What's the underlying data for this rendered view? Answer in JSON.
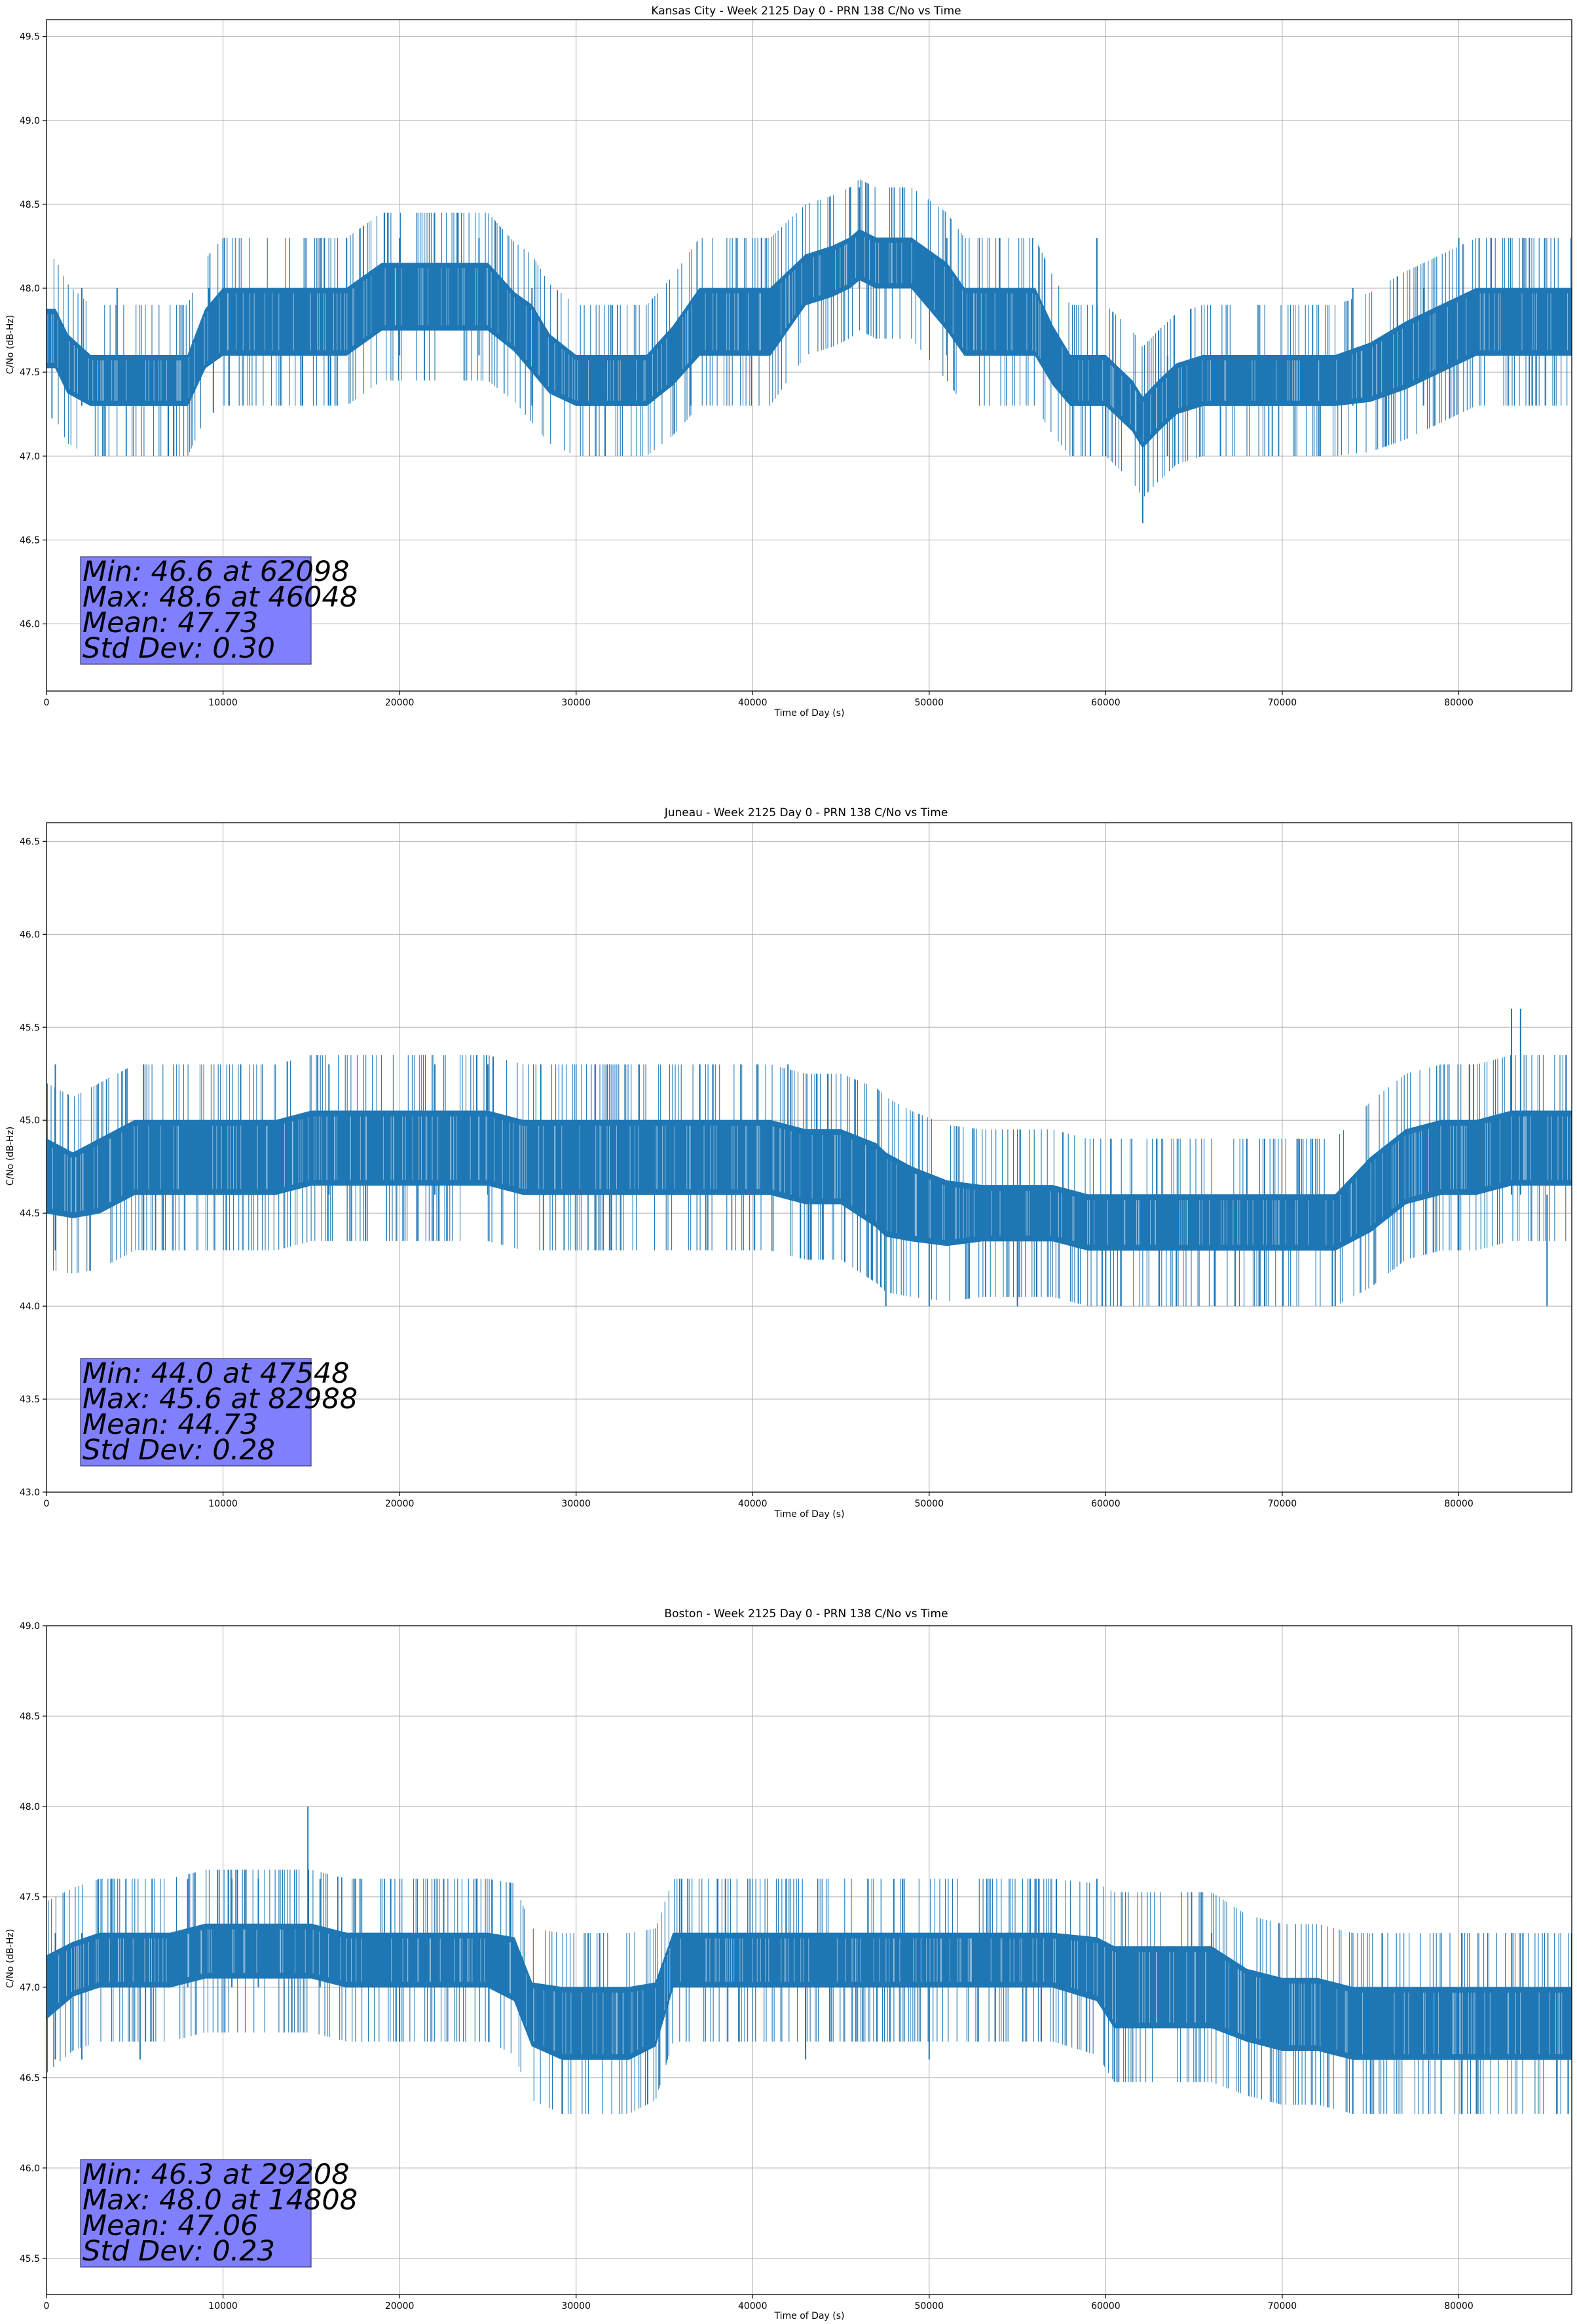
{
  "colors": {
    "line": "#1f77b4",
    "grid": "#b0b0b0",
    "stats_box_fill": "#8080ff",
    "stats_box_edge": "#3a3a6e",
    "axes": "#000000"
  },
  "chart_data": [
    {
      "type": "line",
      "title": "Kansas City - Week 2125 Day 0 - PRN 138 C/No vs Time",
      "xlabel": "Time of Day (s)",
      "ylabel": "C/No (dB-Hz)",
      "xlim": [
        0,
        86400
      ],
      "ylim": [
        45.6,
        49.6
      ],
      "xticks": [
        0,
        10000,
        20000,
        30000,
        40000,
        50000,
        60000,
        70000,
        80000
      ],
      "yticks": [
        46.0,
        46.5,
        47.0,
        47.5,
        48.0,
        48.5,
        49.0,
        49.5
      ],
      "grid": true,
      "stats_lines": [
        "Min: 46.6 at 62098",
        "Max: 48.6 at 46048",
        "Mean: 47.73",
        "Std Dev: 0.30"
      ],
      "series": [
        {
          "x": [
            0,
            500,
            1200,
            2500,
            4000,
            6000,
            8000,
            9000,
            10000,
            12000,
            14000,
            15500,
            17000,
            19000,
            21000,
            23000,
            25000,
            26500,
            27500,
            28500,
            30000,
            32000,
            34000,
            35500,
            37000,
            39000,
            41000,
            43000,
            44500,
            45500,
            46048,
            47000,
            49000,
            51000,
            52000,
            54000,
            56000,
            57000,
            58000,
            60000,
            61500,
            62098,
            63000,
            64000,
            65500,
            67000,
            69000,
            71000,
            73000,
            75000,
            77000,
            79000,
            81000,
            83000,
            85000,
            86400
          ],
          "y_mid": [
            47.7,
            47.7,
            47.55,
            47.45,
            47.45,
            47.45,
            47.45,
            47.7,
            47.8,
            47.8,
            47.8,
            47.8,
            47.8,
            47.95,
            47.95,
            47.95,
            47.95,
            47.8,
            47.7,
            47.55,
            47.45,
            47.45,
            47.45,
            47.6,
            47.8,
            47.8,
            47.8,
            48.05,
            48.1,
            48.15,
            48.2,
            48.15,
            48.15,
            47.95,
            47.8,
            47.8,
            47.8,
            47.6,
            47.45,
            47.45,
            47.3,
            47.2,
            47.3,
            47.4,
            47.45,
            47.45,
            47.45,
            47.45,
            47.45,
            47.5,
            47.6,
            47.7,
            47.8,
            47.8,
            47.8,
            47.8
          ],
          "band": [
            0.35,
            0.35,
            0.35,
            0.3,
            0.3,
            0.3,
            0.3,
            0.35,
            0.4,
            0.4,
            0.4,
            0.4,
            0.4,
            0.4,
            0.4,
            0.4,
            0.4,
            0.35,
            0.4,
            0.35,
            0.3,
            0.3,
            0.3,
            0.35,
            0.4,
            0.4,
            0.4,
            0.3,
            0.3,
            0.3,
            0.3,
            0.3,
            0.3,
            0.4,
            0.4,
            0.4,
            0.4,
            0.35,
            0.3,
            0.3,
            0.3,
            0.3,
            0.3,
            0.3,
            0.3,
            0.3,
            0.3,
            0.3,
            0.3,
            0.35,
            0.4,
            0.4,
            0.4,
            0.4,
            0.4,
            0.4
          ],
          "spikes": [
            [
              2000,
              47.3,
              48.0
            ],
            [
              4000,
              47.3,
              48.0
            ],
            [
              9200,
              47.6,
              48.0
            ],
            [
              14500,
              47.3,
              47.6
            ],
            [
              17000,
              47.6,
              48.3
            ],
            [
              20000,
              47.6,
              48.3
            ],
            [
              24500,
              47.6,
              48.3
            ],
            [
              27500,
              47.3,
              48.0
            ],
            [
              36500,
              47.3,
              47.6
            ],
            [
              40500,
              47.6,
              48.3
            ],
            [
              45500,
              48.0,
              48.6
            ],
            [
              46048,
              48.0,
              48.6
            ],
            [
              48500,
              48.0,
              48.6
            ],
            [
              51000,
              47.6,
              48.3
            ],
            [
              54000,
              47.6,
              48.3
            ],
            [
              59500,
              47.6,
              48.3
            ],
            [
              60000,
              47.0,
              47.6
            ],
            [
              62098,
              46.6,
              47.3
            ],
            [
              63500,
              47.0,
              47.6
            ],
            [
              66500,
              47.0,
              47.6
            ],
            [
              74000,
              47.3,
              48.0
            ],
            [
              78000,
              47.3,
              48.0
            ],
            [
              80000,
              47.6,
              48.3
            ],
            [
              84000,
              47.6,
              48.3
            ]
          ]
        }
      ]
    },
    {
      "type": "line",
      "title": "Juneau - Week 2125 Day 0 - PRN 138 C/No vs Time",
      "xlabel": "Time of Day (s)",
      "ylabel": "C/No (dB-Hz)",
      "xlim": [
        0,
        86400
      ],
      "ylim": [
        43.0,
        46.6
      ],
      "xticks": [
        0,
        10000,
        20000,
        30000,
        40000,
        50000,
        60000,
        70000,
        80000
      ],
      "yticks": [
        43.0,
        43.5,
        44.0,
        44.5,
        45.0,
        45.5,
        46.0,
        46.5
      ],
      "grid": true,
      "stats_lines": [
        "Min: 44.0 at 47548",
        "Max: 45.6 at 82988",
        "Mean: 44.73",
        "Std Dev: 0.28"
      ],
      "series": [
        {
          "x": [
            0,
            1500,
            3000,
            5000,
            7000,
            9000,
            11000,
            13000,
            15000,
            17000,
            19000,
            21000,
            23000,
            25000,
            27000,
            29000,
            31000,
            33000,
            35000,
            37000,
            39000,
            41000,
            43000,
            45000,
            47000,
            47548,
            49000,
            51000,
            53000,
            55000,
            57000,
            59000,
            61000,
            63000,
            65000,
            67000,
            69000,
            71000,
            73000,
            75000,
            77000,
            79000,
            81000,
            82988,
            84000,
            86400
          ],
          "y_mid": [
            44.7,
            44.65,
            44.7,
            44.8,
            44.8,
            44.8,
            44.8,
            44.8,
            44.85,
            44.85,
            44.85,
            44.85,
            44.85,
            44.85,
            44.8,
            44.8,
            44.8,
            44.8,
            44.8,
            44.8,
            44.8,
            44.8,
            44.75,
            44.75,
            44.65,
            44.6,
            44.55,
            44.5,
            44.5,
            44.5,
            44.5,
            44.45,
            44.45,
            44.45,
            44.45,
            44.45,
            44.45,
            44.45,
            44.45,
            44.6,
            44.75,
            44.8,
            44.8,
            44.85,
            44.85,
            44.85
          ],
          "band": [
            0.4,
            0.35,
            0.4,
            0.4,
            0.4,
            0.4,
            0.4,
            0.4,
            0.4,
            0.4,
            0.4,
            0.4,
            0.4,
            0.4,
            0.4,
            0.4,
            0.4,
            0.4,
            0.4,
            0.4,
            0.4,
            0.4,
            0.4,
            0.4,
            0.45,
            0.45,
            0.4,
            0.35,
            0.3,
            0.3,
            0.3,
            0.3,
            0.3,
            0.3,
            0.3,
            0.3,
            0.3,
            0.3,
            0.3,
            0.4,
            0.4,
            0.4,
            0.4,
            0.4,
            0.4,
            0.4
          ],
          "spikes": [
            [
              500,
              44.3,
              45.3
            ],
            [
              5500,
              44.3,
              45.3
            ],
            [
              11000,
              44.6,
              45.3
            ],
            [
              16000,
              44.6,
              45.3
            ],
            [
              22000,
              44.6,
              45.3
            ],
            [
              25000,
              44.6,
              45.3
            ],
            [
              28000,
              44.6,
              45.3
            ],
            [
              32000,
              44.3,
              45.0
            ],
            [
              37000,
              44.6,
              45.3
            ],
            [
              42000,
              44.6,
              45.3
            ],
            [
              47548,
              44.0,
              44.6
            ],
            [
              50000,
              44.0,
              44.6
            ],
            [
              55000,
              44.0,
              44.6
            ],
            [
              60000,
              44.0,
              44.6
            ],
            [
              64000,
              44.0,
              44.6
            ],
            [
              69000,
              44.0,
              44.6
            ],
            [
              73000,
              44.0,
              44.6
            ],
            [
              80000,
              44.3,
              45.0
            ],
            [
              82988,
              44.6,
              45.6
            ],
            [
              83500,
              44.6,
              45.6
            ],
            [
              85000,
              44.0,
              44.6
            ]
          ]
        }
      ]
    },
    {
      "type": "line",
      "title": "Boston - Week 2125 Day 0 - PRN 138 C/No vs Time",
      "xlabel": "Time of Day (s)",
      "ylabel": "C/No (dB-Hz)",
      "xlim": [
        0,
        86400
      ],
      "ylim": [
        45.3,
        49.0
      ],
      "xticks": [
        0,
        10000,
        20000,
        30000,
        40000,
        50000,
        60000,
        70000,
        80000
      ],
      "yticks": [
        45.5,
        46.0,
        46.5,
        47.0,
        47.5,
        48.0,
        48.5,
        49.0
      ],
      "grid": true,
      "stats_lines": [
        "Min: 46.3 at 29208",
        "Max: 48.0 at 14808",
        "Mean: 47.06",
        "Std Dev: 0.23"
      ],
      "series": [
        {
          "x": [
            0,
            1500,
            3000,
            5000,
            7000,
            9000,
            11000,
            13000,
            15000,
            17000,
            19000,
            21000,
            23000,
            25000,
            26500,
            27500,
            29208,
            31000,
            33000,
            34500,
            35500,
            37000,
            39000,
            41000,
            43000,
            45000,
            47000,
            49000,
            51000,
            53000,
            55000,
            57000,
            59500,
            60500,
            62000,
            64000,
            66000,
            68000,
            70000,
            72000,
            74000,
            76000,
            78000,
            80000,
            82000,
            84000,
            86400
          ],
          "y_mid": [
            47.0,
            47.1,
            47.15,
            47.15,
            47.15,
            47.2,
            47.2,
            47.2,
            47.2,
            47.15,
            47.15,
            47.15,
            47.15,
            47.15,
            47.1,
            46.85,
            46.8,
            46.8,
            46.8,
            46.85,
            47.15,
            47.15,
            47.15,
            47.15,
            47.15,
            47.15,
            47.15,
            47.15,
            47.15,
            47.15,
            47.15,
            47.15,
            47.1,
            47.0,
            47.0,
            47.0,
            47.0,
            46.9,
            46.85,
            46.85,
            46.8,
            46.8,
            46.8,
            46.8,
            46.8,
            46.8,
            46.8
          ],
          "band": [
            0.35,
            0.3,
            0.3,
            0.3,
            0.3,
            0.3,
            0.3,
            0.3,
            0.3,
            0.3,
            0.3,
            0.3,
            0.3,
            0.3,
            0.35,
            0.35,
            0.4,
            0.4,
            0.4,
            0.35,
            0.3,
            0.3,
            0.3,
            0.3,
            0.3,
            0.3,
            0.3,
            0.3,
            0.3,
            0.3,
            0.3,
            0.3,
            0.35,
            0.45,
            0.45,
            0.45,
            0.45,
            0.4,
            0.4,
            0.4,
            0.4,
            0.4,
            0.4,
            0.4,
            0.4,
            0.4,
            0.4
          ],
          "spikes": [
            [
              500,
              46.6,
              47.3
            ],
            [
              2000,
              46.6,
              47.3
            ],
            [
              4500,
              47.0,
              47.6
            ],
            [
              5300,
              46.6,
              47.0
            ],
            [
              8000,
              47.0,
              47.6
            ],
            [
              10500,
              47.0,
              47.6
            ],
            [
              12000,
              47.0,
              47.6
            ],
            [
              14808,
              47.3,
              48.0
            ],
            [
              15500,
              47.0,
              47.6
            ],
            [
              19500,
              47.0,
              47.6
            ],
            [
              22500,
              47.0,
              47.6
            ],
            [
              29208,
              46.3,
              47.0
            ],
            [
              38000,
              47.0,
              47.6
            ],
            [
              43000,
              46.6,
              47.3
            ],
            [
              48000,
              47.0,
              47.6
            ],
            [
              50000,
              46.6,
              47.3
            ],
            [
              56000,
              47.0,
              47.6
            ],
            [
              59500,
              47.0,
              47.6
            ],
            [
              66000,
              47.0,
              47.3
            ],
            [
              74000,
              46.3,
              47.0
            ],
            [
              75000,
              46.3,
              47.0
            ],
            [
              79000,
              46.3,
              47.0
            ],
            [
              81000,
              46.3,
              47.0
            ],
            [
              83000,
              46.6,
              47.3
            ]
          ]
        }
      ]
    }
  ]
}
